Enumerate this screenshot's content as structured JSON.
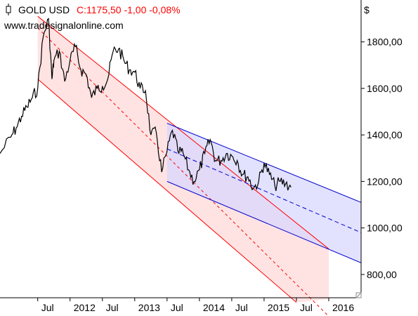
{
  "header": {
    "icon": "candlestick-chart-icon",
    "symbol": "GOLD USD",
    "quote": "C:1175,50 -1,00 -0,08%",
    "website": "www.tradesignalonline.com",
    "currency": "$",
    "quote_color": "#ff0000"
  },
  "colors": {
    "red_channel_line": "#ff0000",
    "red_channel_fill": "#ffd9d9",
    "blue_channel_line": "#0000cc",
    "blue_channel_fill": "#d6d6ff",
    "price_line": "#000000"
  },
  "chart_data": {
    "type": "line",
    "title": "GOLD USD",
    "ylim": [
      700,
      1980
    ],
    "y_ticks": [
      "800,00",
      "1000,00",
      "1200,00",
      "1400,00",
      "1600,00",
      "1800,00"
    ],
    "y_tick_values": [
      800,
      1000,
      1200,
      1400,
      1600,
      1800
    ],
    "x_ticks": [
      "Jul",
      "2012",
      "Jul",
      "2013",
      "Jul",
      "2014",
      "Jul",
      "2015",
      "Jul",
      "2016"
    ],
    "x_tick_dates": [
      "2011-07",
      "2012-01",
      "2012-07",
      "2013-01",
      "2013-07",
      "2014-01",
      "2014-07",
      "2015-01",
      "2015-07",
      "2016-01"
    ],
    "x_range": [
      "2010-12",
      "2016-07"
    ],
    "grid": false,
    "series": [
      {
        "name": "GOLD USD",
        "kind": "price",
        "points": [
          [
            "2010-12",
            1320
          ],
          [
            "2011-02",
            1390
          ],
          [
            "2011-03",
            1430
          ],
          [
            "2011-04",
            1480
          ],
          [
            "2011-05",
            1520
          ],
          [
            "2011-06",
            1560
          ],
          [
            "2011-07",
            1600
          ],
          [
            "2011-08",
            1820
          ],
          [
            "2011-09",
            1900
          ],
          [
            "2011-09-20",
            1640
          ],
          [
            "2011-10",
            1720
          ],
          [
            "2011-11",
            1760
          ],
          [
            "2011-12",
            1630
          ],
          [
            "2012-01",
            1720
          ],
          [
            "2012-02",
            1780
          ],
          [
            "2012-03",
            1680
          ],
          [
            "2012-04",
            1660
          ],
          [
            "2012-05",
            1560
          ],
          [
            "2012-06",
            1600
          ],
          [
            "2012-07",
            1610
          ],
          [
            "2012-08",
            1640
          ],
          [
            "2012-09",
            1760
          ],
          [
            "2012-10",
            1770
          ],
          [
            "2012-11",
            1720
          ],
          [
            "2012-12",
            1680
          ],
          [
            "2013-01",
            1670
          ],
          [
            "2013-02",
            1600
          ],
          [
            "2013-03",
            1590
          ],
          [
            "2013-04",
            1400
          ],
          [
            "2013-05",
            1410
          ],
          [
            "2013-06",
            1240
          ],
          [
            "2013-07",
            1330
          ],
          [
            "2013-08",
            1420
          ],
          [
            "2013-09",
            1330
          ],
          [
            "2013-10",
            1320
          ],
          [
            "2013-11",
            1250
          ],
          [
            "2013-12",
            1200
          ],
          [
            "2014-01",
            1250
          ],
          [
            "2014-02",
            1320
          ],
          [
            "2014-03",
            1380
          ],
          [
            "2014-04",
            1290
          ],
          [
            "2014-05",
            1290
          ],
          [
            "2014-06",
            1320
          ],
          [
            "2014-07",
            1310
          ],
          [
            "2014-08",
            1290
          ],
          [
            "2014-09",
            1230
          ],
          [
            "2014-10",
            1220
          ],
          [
            "2014-11",
            1170
          ],
          [
            "2014-12",
            1200
          ],
          [
            "2015-01",
            1280
          ],
          [
            "2015-02",
            1230
          ],
          [
            "2015-03",
            1180
          ],
          [
            "2015-04",
            1200
          ],
          [
            "2015-05",
            1190
          ],
          [
            "2015-06",
            1175
          ]
        ]
      },
      {
        "name": "",
        "kind": "red-channel-upper",
        "points": [
          [
            "2011-07",
            1910
          ],
          [
            "2016-01",
            910
          ]
        ]
      },
      {
        "name": "",
        "kind": "red-channel-middle",
        "points": [
          [
            "2011-07",
            1860
          ],
          [
            "2016-01",
            620
          ]
        ]
      },
      {
        "name": "",
        "kind": "red-channel-lower",
        "points": [
          [
            "2011-07",
            1640
          ],
          [
            "2015-07",
            680
          ]
        ]
      },
      {
        "name": "",
        "kind": "blue-channel-upper",
        "points": [
          [
            "2013-07",
            1450
          ],
          [
            "2016-07",
            1110
          ]
        ]
      },
      {
        "name": "",
        "kind": "blue-channel-middle",
        "points": [
          [
            "2013-07",
            1340
          ],
          [
            "2016-07",
            980
          ]
        ]
      },
      {
        "name": "",
        "kind": "blue-channel-lower",
        "points": [
          [
            "2013-07",
            1200
          ],
          [
            "2016-07",
            850
          ]
        ]
      }
    ]
  }
}
